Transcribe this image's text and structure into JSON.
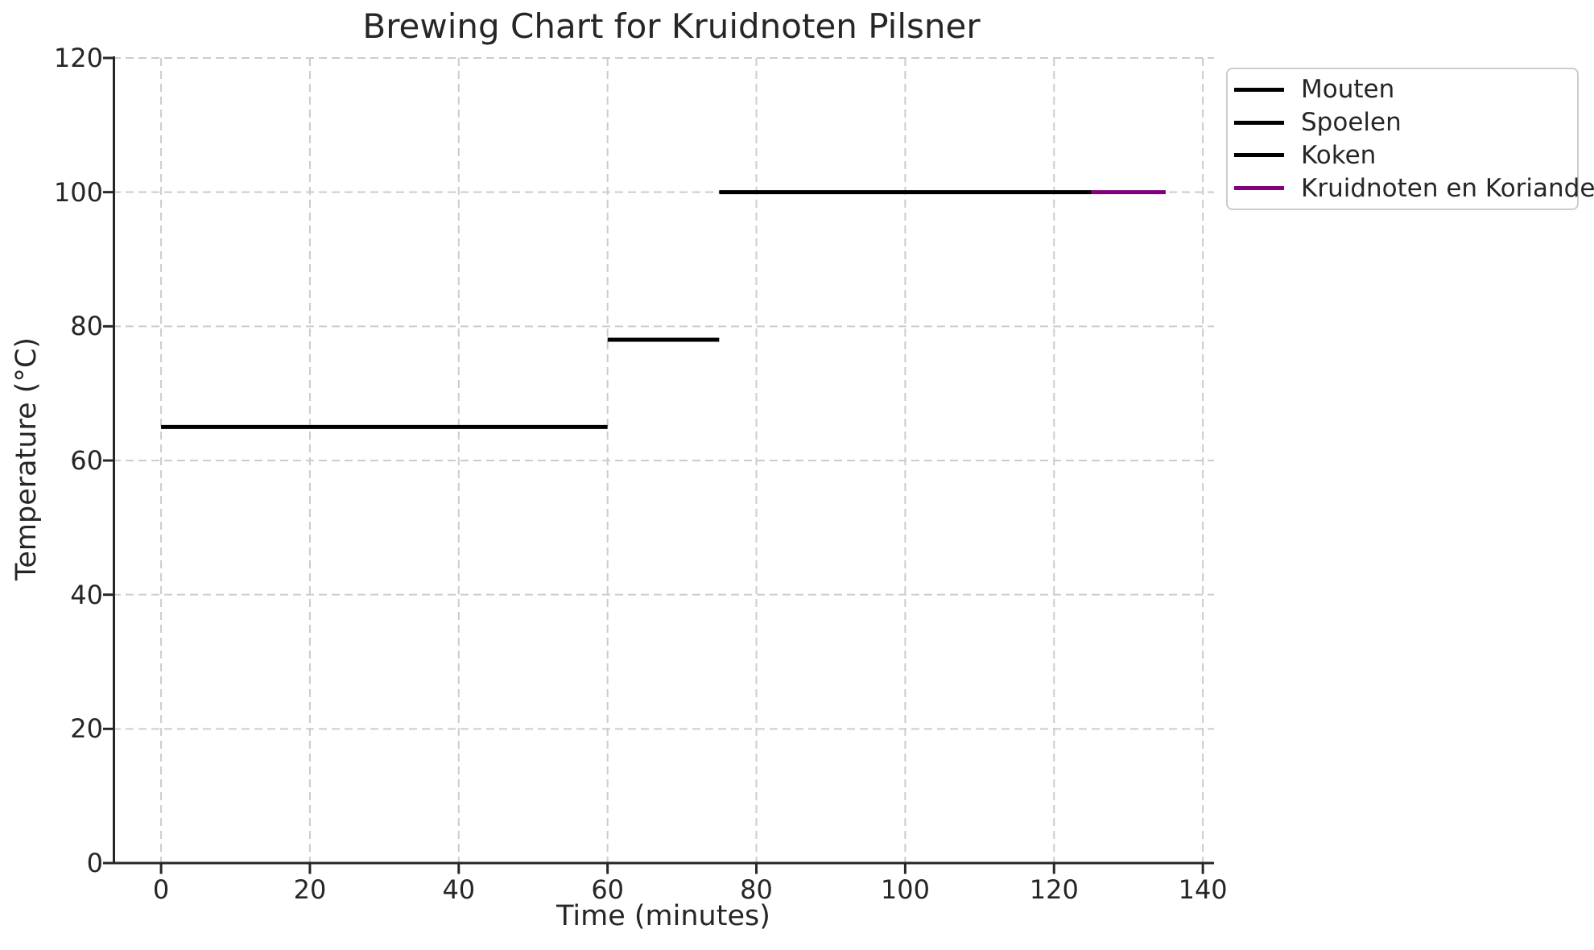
{
  "chart_data": {
    "type": "line",
    "title": "Brewing Chart for Kruidnoten Pilsner",
    "xlabel": "Time (minutes)",
    "ylabel": "Temperature (°C)",
    "xlim": [
      -6.5,
      141.5
    ],
    "ylim": [
      0,
      120
    ],
    "xticks": [
      0,
      20,
      40,
      60,
      80,
      100,
      120,
      140
    ],
    "yticks": [
      0,
      20,
      40,
      60,
      80,
      100,
      120
    ],
    "grid": true,
    "grid_style": "dashed",
    "legend_position": "upper right outside",
    "series": [
      {
        "name": "Mouten",
        "color": "#000000",
        "temperature_c": 65,
        "start_min": 0,
        "end_min": 60
      },
      {
        "name": "Spoelen",
        "color": "#000000",
        "temperature_c": 78,
        "start_min": 60,
        "end_min": 75
      },
      {
        "name": "Koken",
        "color": "#000000",
        "temperature_c": 100,
        "start_min": 75,
        "end_min": 125
      },
      {
        "name": "Kruidnoten en Koriander",
        "color": "#800080",
        "temperature_c": 100,
        "start_min": 125,
        "end_min": 135
      }
    ],
    "colors": {
      "background": "#ffffff",
      "text": "#262626",
      "grid": "#cccccc",
      "spine": "#262626"
    }
  }
}
